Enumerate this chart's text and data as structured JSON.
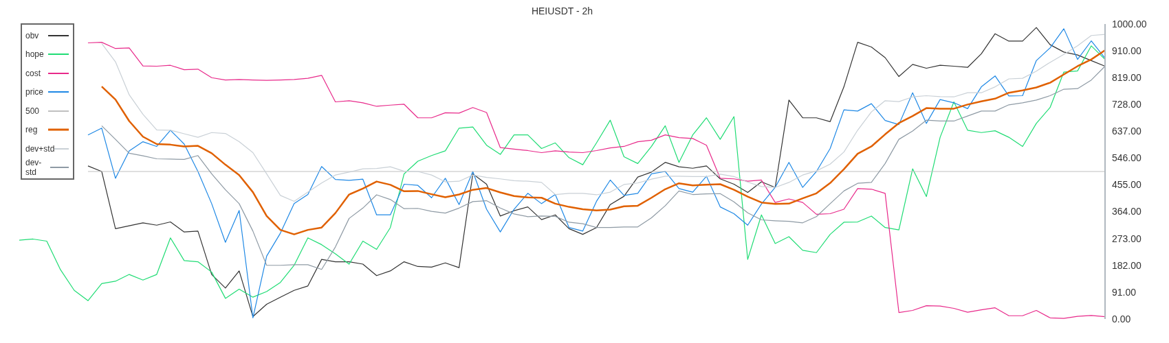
{
  "chart_data": {
    "type": "line",
    "title": "HEIUSDT - 2h",
    "categories": [
      null,
      null,
      null,
      null,
      null,
      null,
      null,
      null,
      null,
      null,
      null,
      null,
      null,
      null,
      null,
      null,
      null,
      null,
      null,
      null,
      null,
      null,
      null,
      null,
      null,
      null,
      null,
      null,
      null,
      null,
      null,
      null,
      null,
      null,
      null,
      null,
      null,
      null,
      null,
      null,
      null,
      null,
      null,
      null,
      null,
      null,
      null,
      null,
      null,
      null,
      null,
      null,
      null,
      null,
      null,
      null,
      null,
      null,
      null,
      null,
      null,
      null,
      null,
      null,
      null,
      null,
      null,
      null,
      null,
      null,
      null,
      null,
      null,
      null,
      null,
      null,
      null,
      null,
      null,
      null
    ],
    "series": [
      {
        "name": "obv",
        "color": "#333333",
        "values": [
          null,
          null,
          null,
          null,
          null,
          519,
          500,
          306,
          316,
          326,
          318,
          329,
          295,
          298,
          151,
          105,
          163,
          8,
          50,
          74,
          97,
          112,
          202,
          194,
          194,
          186,
          147,
          163,
          194,
          178,
          176,
          190,
          174,
          492,
          457,
          349,
          367,
          380,
          337,
          353,
          306,
          287,
          310,
          388,
          416,
          481,
          498,
          531,
          516,
          511,
          519,
          475,
          457,
          429,
          465,
          446,
          742,
          682,
          682,
          669,
          787,
          938,
          922,
          886,
          822,
          863,
          850,
          860,
          857,
          853,
          899,
          967,
          942,
          942,
          988,
          930,
          905,
          895,
          876,
          857
        ]
      },
      {
        "name": "hope",
        "color": "#1fdc74",
        "values": [
          267,
          271,
          264,
          167,
          97,
          62,
          120,
          128,
          151,
          132,
          151,
          275,
          198,
          194,
          159,
          70,
          101,
          74,
          93,
          124,
          182,
          275,
          252,
          221,
          186,
          264,
          236,
          310,
          492,
          535,
          554,
          570,
          647,
          651,
          589,
          558,
          624,
          624,
          578,
          597,
          547,
          523,
          597,
          674,
          550,
          527,
          585,
          655,
          531,
          624,
          682,
          609,
          686,
          202,
          353,
          256,
          279,
          233,
          225,
          287,
          328,
          329,
          349,
          310,
          302,
          509,
          415,
          616,
          736,
          640,
          632,
          638,
          616,
          585,
          663,
          717,
          837,
          841,
          926,
          880
        ]
      },
      {
        "name": "cost",
        "color": "#e8298a",
        "values": [
          null,
          null,
          null,
          null,
          null,
          936,
          938,
          917,
          919,
          858,
          857,
          860,
          845,
          847,
          818,
          810,
          812,
          810,
          809,
          810,
          812,
          816,
          826,
          736,
          740,
          733,
          721,
          725,
          728,
          682,
          682,
          699,
          698,
          717,
          700,
          581,
          576,
          571,
          564,
          570,
          566,
          564,
          571,
          580,
          585,
          601,
          606,
          624,
          615,
          612,
          589,
          477,
          475,
          467,
          471,
          395,
          407,
          395,
          355,
          357,
          372,
          442,
          440,
          426,
          22,
          29,
          45,
          44,
          36,
          23,
          31,
          38,
          11,
          11,
          29,
          4,
          2,
          9,
          12,
          8
        ]
      },
      {
        "name": "price",
        "color": "#1e88e5",
        "values": [
          null,
          null,
          null,
          null,
          null,
          624,
          647,
          477,
          570,
          601,
          585,
          640,
          593,
          500,
          391,
          260,
          368,
          4,
          213,
          291,
          391,
          422,
          517,
          473,
          470,
          474,
          353,
          353,
          457,
          453,
          411,
          477,
          388,
          500,
          372,
          295,
          372,
          426,
          391,
          422,
          310,
          298,
          399,
          471,
          419,
          426,
          492,
          500,
          442,
          430,
          484,
          380,
          357,
          318,
          390,
          446,
          531,
          446,
          500,
          578,
          709,
          705,
          730,
          673,
          659,
          767,
          663,
          744,
          733,
          713,
          787,
          824,
          756,
          757,
          876,
          919,
          984,
          880,
          943,
          884
        ]
      },
      {
        "name": "500",
        "color": "#c0c0c0",
        "values": [
          null,
          null,
          null,
          null,
          null,
          500,
          500,
          500,
          500,
          500,
          500,
          500,
          500,
          500,
          500,
          500,
          500,
          500,
          500,
          500,
          500,
          500,
          500,
          500,
          500,
          500,
          500,
          500,
          500,
          500,
          500,
          500,
          500,
          500,
          500,
          500,
          500,
          500,
          500,
          500,
          500,
          500,
          500,
          500,
          500,
          500,
          500,
          500,
          500,
          500,
          500,
          500,
          500,
          500,
          500,
          500,
          500,
          500,
          500,
          500,
          500,
          500,
          500,
          500,
          500,
          500,
          500,
          500,
          500,
          500,
          500,
          500,
          500,
          500,
          500,
          500,
          500,
          500,
          500,
          500
        ]
      },
      {
        "name": "reg",
        "color": "#e06000",
        "values": [
          null,
          null,
          null,
          null,
          null,
          null,
          788,
          744,
          671,
          618,
          593,
          591,
          585,
          587,
          562,
          523,
          488,
          430,
          349,
          302,
          287,
          302,
          310,
          359,
          422,
          442,
          466,
          455,
          433,
          434,
          423,
          413,
          422,
          438,
          444,
          429,
          417,
          412,
          411,
          391,
          380,
          372,
          368,
          371,
          382,
          384,
          411,
          440,
          460,
          453,
          455,
          457,
          438,
          415,
          395,
          390,
          391,
          409,
          426,
          461,
          508,
          560,
          585,
          626,
          664,
          688,
          715,
          713,
          713,
          727,
          738,
          747,
          767,
          775,
          785,
          801,
          829,
          857,
          880,
          911
        ]
      },
      {
        "name": "dev+std",
        "color": "#c9d0d6",
        "values": [
          null,
          null,
          null,
          null,
          null,
          null,
          934,
          872,
          760,
          694,
          641,
          640,
          628,
          616,
          632,
          629,
          601,
          564,
          492,
          419,
          399,
          430,
          461,
          488,
          498,
          509,
          510,
          516,
          501,
          500,
          488,
          465,
          467,
          488,
          480,
          475,
          469,
          467,
          463,
          422,
          426,
          426,
          421,
          430,
          456,
          461,
          474,
          484,
          484,
          483,
          483,
          491,
          483,
          464,
          449,
          446,
          463,
          488,
          502,
          525,
          566,
          640,
          702,
          740,
          737,
          753,
          757,
          754,
          753,
          767,
          767,
          787,
          814,
          816,
          840,
          870,
          897,
          926,
          961,
          965
        ]
      },
      {
        "name": "dev-std",
        "color": "#8e9aa4",
        "values": [
          null,
          null,
          null,
          null,
          null,
          null,
          655,
          609,
          562,
          553,
          543,
          542,
          541,
          554,
          492,
          438,
          391,
          298,
          182,
          182,
          184,
          184,
          168,
          244,
          341,
          376,
          421,
          405,
          374,
          375,
          365,
          359,
          376,
          398,
          401,
          376,
          356,
          347,
          349,
          348,
          328,
          323,
          310,
          310,
          312,
          312,
          343,
          384,
          434,
          422,
          424,
          425,
          397,
          360,
          336,
          333,
          331,
          326,
          347,
          391,
          434,
          460,
          463,
          527,
          609,
          637,
          674,
          671,
          671,
          688,
          705,
          705,
          726,
          733,
          742,
          757,
          779,
          781,
          810,
          857
        ]
      }
    ],
    "ylim": [
      0,
      1000
    ],
    "yticks": [
      {
        "value": 0,
        "label": "0.00"
      },
      {
        "value": 91,
        "label": "91.00"
      },
      {
        "value": 182,
        "label": "182.00"
      },
      {
        "value": 273,
        "label": "273.00"
      },
      {
        "value": 364,
        "label": "364.00"
      },
      {
        "value": 455,
        "label": "455.00"
      },
      {
        "value": 546,
        "label": "546.00"
      },
      {
        "value": 637,
        "label": "637.00"
      },
      {
        "value": 728,
        "label": "728.00"
      },
      {
        "value": 819,
        "label": "819.00"
      },
      {
        "value": 910,
        "label": "910.00"
      },
      {
        "value": 1000,
        "label": "1000.00"
      }
    ],
    "tick_labels": "y",
    "legend": "top left"
  }
}
